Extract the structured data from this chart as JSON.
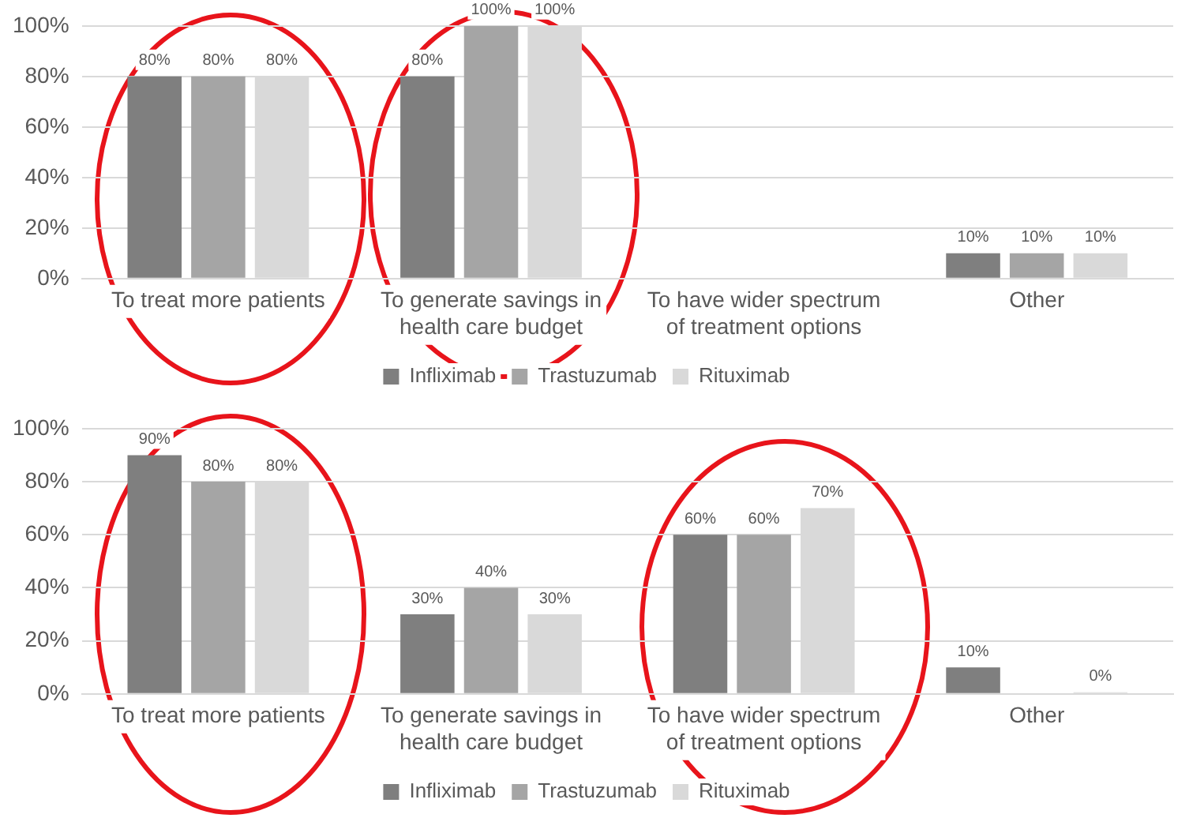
{
  "chart_data": [
    {
      "type": "bar",
      "categories": [
        "To treat more patients",
        "To generate savings in health care budget",
        "To have wider spectrum of treatment options",
        "Other"
      ],
      "series": [
        {
          "name": "Infliximab",
          "color": "#7f7f7f",
          "values": [
            80,
            80,
            null,
            10
          ],
          "value_labels": [
            "80%",
            "80%",
            null,
            "10%"
          ]
        },
        {
          "name": "Trastuzumab",
          "color": "#a5a5a5",
          "values": [
            80,
            100,
            null,
            10
          ],
          "value_labels": [
            "80%",
            "100%",
            null,
            "10%"
          ]
        },
        {
          "name": "Rituximab",
          "color": "#d9d9d9",
          "values": [
            80,
            100,
            null,
            10
          ],
          "value_labels": [
            "80%",
            "100%",
            null,
            "10%"
          ]
        }
      ],
      "ylim": [
        0,
        100
      ],
      "yticks": [
        {
          "value": 0,
          "label": "0%"
        },
        {
          "value": 20,
          "label": "20%"
        },
        {
          "value": 40,
          "label": "40%"
        },
        {
          "value": 60,
          "label": "60%"
        },
        {
          "value": 80,
          "label": "80%"
        },
        {
          "value": 100,
          "label": "100%"
        }
      ],
      "grid": "y",
      "legend": "bottom"
    },
    {
      "type": "bar",
      "categories": [
        "To treat more patients",
        "To generate savings in health care budget",
        "To have wider spectrum of treatment options",
        "Other"
      ],
      "series": [
        {
          "name": "Infliximab",
          "color": "#7f7f7f",
          "values": [
            90,
            30,
            60,
            10
          ],
          "value_labels": [
            "90%",
            "30%",
            "60%",
            "10%"
          ]
        },
        {
          "name": "Trastuzumab",
          "color": "#a5a5a5",
          "values": [
            80,
            40,
            60,
            null
          ],
          "value_labels": [
            "80%",
            "40%",
            "60%",
            null
          ]
        },
        {
          "name": "Rituximab",
          "color": "#d9d9d9",
          "values": [
            80,
            30,
            70,
            0
          ],
          "value_labels": [
            "80%",
            "30%",
            "70%",
            "0%"
          ]
        }
      ],
      "ylim": [
        0,
        100
      ],
      "yticks": [
        {
          "value": 0,
          "label": "0%"
        },
        {
          "value": 20,
          "label": "20%"
        },
        {
          "value": 40,
          "label": "40%"
        },
        {
          "value": 60,
          "label": "60%"
        },
        {
          "value": 80,
          "label": "80%"
        },
        {
          "value": 100,
          "label": "100%"
        }
      ],
      "grid": "y",
      "legend": "bottom"
    }
  ]
}
